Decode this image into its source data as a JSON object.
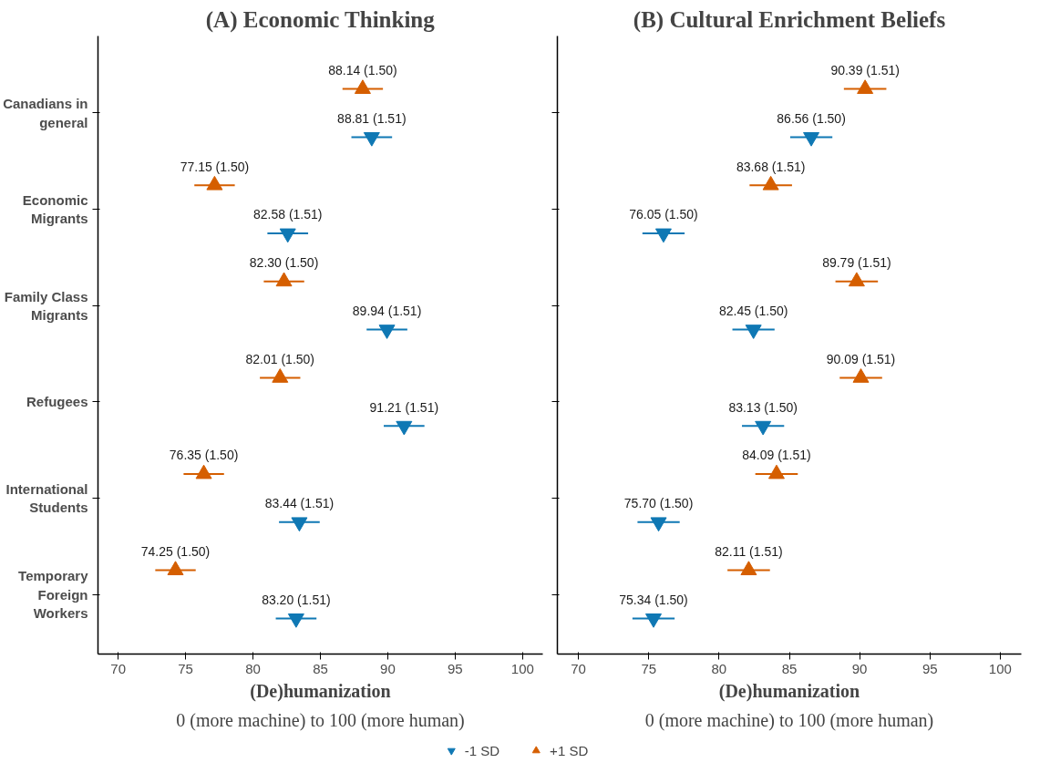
{
  "chart_data": [
    {
      "type": "scatter",
      "orientation": "horizontal",
      "title": "(A) Economic Thinking",
      "xlabel": "(De)humanization",
      "annotations": [
        "0 (more machine) to 100 (more human)"
      ],
      "categories": [
        "Canadians in general",
        "Economic Migrants",
        "Family Class Migrants",
        "Refugees",
        "International Students",
        "Temporary Foreign Workers"
      ],
      "xlim": [
        68.5,
        101.5
      ],
      "xticks": [
        70,
        75,
        80,
        85,
        90,
        95,
        100
      ],
      "grid": false,
      "legend": "bottom",
      "series": [
        {
          "name": "-1 SD",
          "color": "#0f78b4",
          "marker": "triangle_down",
          "values": [
            88.81,
            82.58,
            89.94,
            91.21,
            83.44,
            83.2
          ],
          "errors": [
            1.51,
            1.51,
            1.51,
            1.51,
            1.51,
            1.51
          ],
          "value_labels": [
            "88.81 (1.51)",
            "82.58 (1.51)",
            "89.94 (1.51)",
            "91.21 (1.51)",
            "83.44 (1.51)",
            "83.20 (1.51)"
          ]
        },
        {
          "name": "+1 SD",
          "color": "#d55e00",
          "marker": "triangle",
          "values": [
            88.14,
            77.15,
            82.3,
            82.01,
            76.35,
            74.25
          ],
          "errors": [
            1.5,
            1.5,
            1.5,
            1.5,
            1.5,
            1.5
          ],
          "value_labels": [
            "88.14 (1.50)",
            "77.15 (1.50)",
            "82.30 (1.50)",
            "82.01 (1.50)",
            "76.35 (1.50)",
            "74.25 (1.50)"
          ]
        }
      ]
    },
    {
      "type": "scatter",
      "orientation": "horizontal",
      "title": "(B) Cultural Enrichment Beliefs",
      "xlabel": "(De)humanization",
      "annotations": [
        "0 (more machine) to 100 (more human)"
      ],
      "categories": [
        "Canadians in general",
        "Economic Migrants",
        "Family Class Migrants",
        "Refugees",
        "International Students",
        "Temporary Foreign Workers"
      ],
      "xlim": [
        68.5,
        101.5
      ],
      "xticks": [
        70,
        75,
        80,
        85,
        90,
        95,
        100
      ],
      "grid": false,
      "tick_labels": "x",
      "series": [
        {
          "color": "#0f78b4",
          "marker": "triangle_down",
          "values": [
            86.56,
            76.05,
            82.45,
            83.13,
            75.7,
            75.34
          ],
          "errors": [
            1.5,
            1.5,
            1.5,
            1.5,
            1.5,
            1.5
          ],
          "value_labels": [
            "86.56 (1.50)",
            "76.05 (1.50)",
            "82.45 (1.50)",
            "83.13 (1.50)",
            "75.70 (1.50)",
            "75.34 (1.50)"
          ]
        },
        {
          "color": "#d55e00",
          "marker": "triangle",
          "values": [
            90.39,
            83.68,
            89.79,
            90.09,
            84.09,
            82.11
          ],
          "errors": [
            1.51,
            1.51,
            1.51,
            1.51,
            1.51,
            1.51
          ],
          "value_labels": [
            "90.39 (1.51)",
            "83.68 (1.51)",
            "89.79 (1.51)",
            "90.09 (1.51)",
            "84.09 (1.51)",
            "82.11 (1.51)"
          ]
        }
      ]
    }
  ]
}
